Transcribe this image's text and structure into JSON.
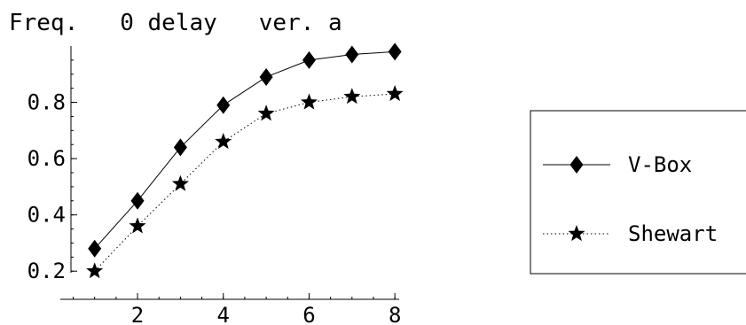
{
  "chart_data": {
    "type": "line",
    "title": "Freq.   0 delay   ver. a",
    "xlabel": "",
    "ylabel": "",
    "xlim": [
      0.2,
      8.1
    ],
    "ylim": [
      0.1,
      1.0
    ],
    "x_ticks": [
      2,
      4,
      6,
      8
    ],
    "y_ticks": [
      0.2,
      0.4,
      0.6,
      0.8
    ],
    "x_tick_labels": [
      "2",
      "4",
      "6",
      "8"
    ],
    "y_tick_labels": [
      "0.2",
      "0.4",
      "0.6",
      "0.8"
    ],
    "legend_position": "right",
    "series": [
      {
        "name": "V-Box",
        "marker": "diamond",
        "line_style": "solid",
        "color": "#000000",
        "x": [
          1,
          2,
          3,
          4,
          5,
          6,
          7,
          8
        ],
        "values": [
          0.28,
          0.45,
          0.64,
          0.79,
          0.89,
          0.95,
          0.97,
          0.98
        ]
      },
      {
        "name": "Shewart",
        "marker": "star",
        "line_style": "dotted",
        "color": "#000000",
        "x": [
          1,
          2,
          3,
          4,
          5,
          6,
          7,
          8
        ],
        "values": [
          0.2,
          0.36,
          0.51,
          0.66,
          0.76,
          0.8,
          0.82,
          0.83
        ]
      }
    ]
  }
}
